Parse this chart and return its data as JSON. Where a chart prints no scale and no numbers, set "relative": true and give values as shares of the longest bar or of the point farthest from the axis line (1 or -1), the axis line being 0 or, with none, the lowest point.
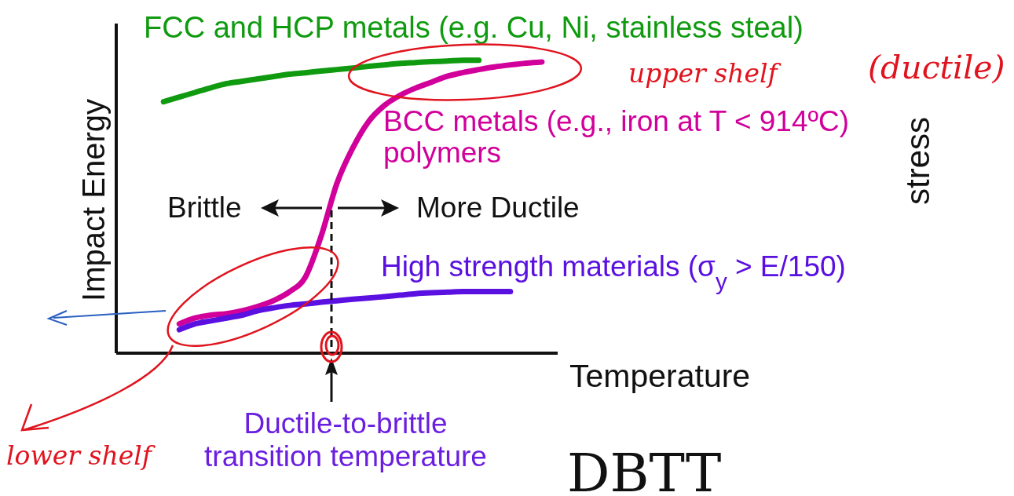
{
  "chart_data": {
    "type": "line",
    "relative": true,
    "xlabel": "Temperature",
    "ylabel": "Impact Energy",
    "categories": [
      null,
      null,
      null,
      null,
      null,
      null,
      null,
      null,
      null,
      null,
      null,
      null,
      null,
      null,
      null,
      null,
      null,
      null,
      null,
      null,
      null,
      null,
      null,
      null,
      null,
      null,
      null,
      null,
      null
    ],
    "series": [
      {
        "name": "FCC and HCP metals (e.g. Cu, Ni, stainless steal)",
        "color": "#0f9a0f",
        "values": [
          null,
          null,
          null,
          0.858,
          0.874,
          0.89,
          0.906,
          0.92,
          0.928,
          0.936,
          0.944,
          0.952,
          0.957,
          0.963,
          0.968,
          0.973,
          0.979,
          0.984,
          0.989,
          0.992,
          0.995,
          0.997,
          1.0,
          1.0,
          null,
          null,
          null,
          null,
          null
        ]
      },
      {
        "name": "BCC metals (e.g., iron at T < 914ºC)\npolymers",
        "color": "#d1009b",
        "values": [
          null,
          null,
          null,
          null,
          0.1,
          0.12,
          0.13,
          0.135,
          0.145,
          0.16,
          0.18,
          0.21,
          0.26,
          0.4,
          0.58,
          0.7,
          0.79,
          0.845,
          0.88,
          0.905,
          0.925,
          0.945,
          0.958,
          0.968,
          0.977,
          0.984,
          0.99,
          0.994,
          null
        ]
      },
      {
        "name": "High strength materials (σ$_{y}$ > E/150)",
        "color": "#5a10e0",
        "values": [
          null,
          null,
          null,
          null,
          0.08,
          0.1,
          0.11,
          0.12,
          0.13,
          0.145,
          0.155,
          0.163,
          0.168,
          0.174,
          0.179,
          0.184,
          0.188,
          0.193,
          0.198,
          0.203,
          0.206,
          0.208,
          0.21,
          0.21,
          0.21,
          0.21,
          null,
          null,
          null
        ]
      }
    ],
    "annotations": [
      "Brittle",
      "More Ductile",
      "Ductile-to-brittle\ntransition temperature",
      "upper shelf",
      "(ductile)",
      "stress",
      "lower shelf",
      "DBTT"
    ]
  }
}
